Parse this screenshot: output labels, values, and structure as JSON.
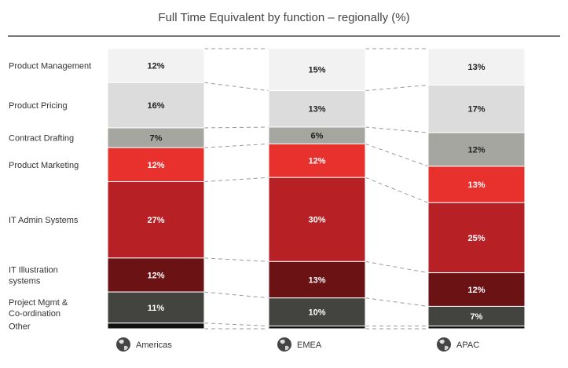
{
  "title": "Full Time Equivalent  by function – regionally (%)",
  "chart_data": {
    "type": "bar",
    "stacked": true,
    "title": "Full Time Equivalent  by function – regionally (%)",
    "categories": [
      "Americas",
      "EMEA",
      "APAC"
    ],
    "series": [
      {
        "name": "Product Management",
        "values": [
          12,
          15,
          13
        ],
        "labels": [
          "12%",
          "15%",
          "13%"
        ],
        "color": "#f2f2f2",
        "text_color": "#222222"
      },
      {
        "name": "Product Pricing",
        "values": [
          16,
          13,
          17
        ],
        "labels": [
          "16%",
          "13%",
          "17%"
        ],
        "color": "#dcdcdc",
        "text_color": "#222222"
      },
      {
        "name": "Contract Drafting",
        "values": [
          7,
          6,
          12
        ],
        "labels": [
          "7%",
          "6%",
          "12%"
        ],
        "color": "#a6a6a0",
        "text_color": "#222222"
      },
      {
        "name": "Product Marketing",
        "values": [
          12,
          12,
          13
        ],
        "labels": [
          "12%",
          "12%",
          "13%"
        ],
        "color": "#e8302c",
        "text_color": "#ffffff"
      },
      {
        "name": "IT Admin Systems",
        "values": [
          27,
          30,
          25
        ],
        "labels": [
          "27%",
          "30%",
          "25%"
        ],
        "color": "#b72024",
        "text_color": "#ffffff"
      },
      {
        "name": "IT Illustration systems",
        "values": [
          12,
          13,
          12
        ],
        "labels": [
          "12%",
          "13%",
          "12%"
        ],
        "color": "#6a1214",
        "text_color": "#ffffff"
      },
      {
        "name": "Project Mgmt & Co-ordination",
        "values": [
          11,
          10,
          7
        ],
        "labels": [
          "11%",
          "10%",
          "7%"
        ],
        "color": "#43433f",
        "text_color": "#ffffff"
      },
      {
        "name": "Other",
        "values": [
          2,
          1,
          1
        ],
        "labels": [
          "",
          "",
          ""
        ],
        "color": "#111111",
        "text_color": "#ffffff"
      }
    ],
    "ylim": [
      0,
      100
    ],
    "legend": "left",
    "grid": false
  },
  "category_labels": [
    [
      "Product Management"
    ],
    [
      "Product Pricing"
    ],
    [
      "Contract Drafting"
    ],
    [
      "Product Marketing"
    ],
    [
      "IT Admin Systems"
    ],
    [
      "IT Illustration",
      "systems"
    ],
    [
      "Project Mgmt &",
      "Co-ordination"
    ],
    [
      "Other"
    ]
  ],
  "regions": [
    {
      "name": "Americas",
      "icon": "globe-icon"
    },
    {
      "name": "EMEA",
      "icon": "globe-icon"
    },
    {
      "name": "APAC",
      "icon": "globe-icon"
    }
  ]
}
